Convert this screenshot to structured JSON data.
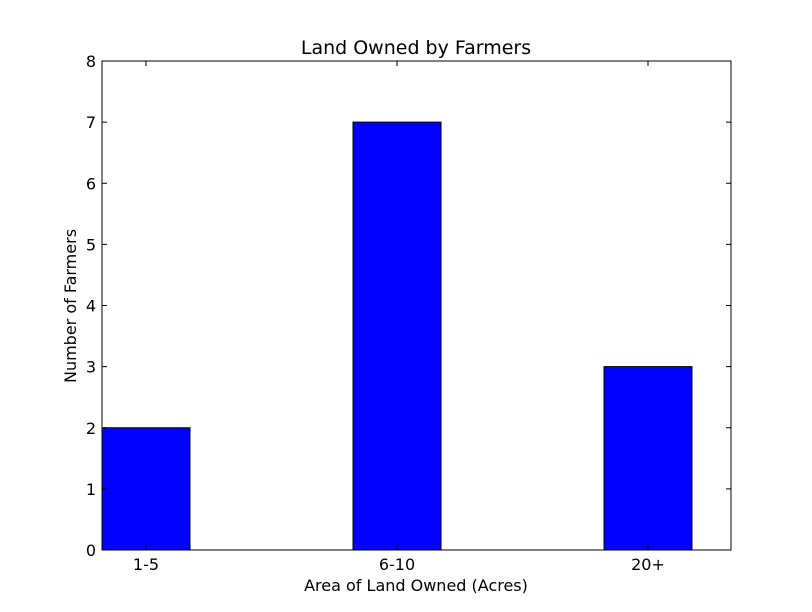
{
  "chart_data": {
    "type": "bar",
    "title": "Land Owned by Farmers",
    "xlabel": "Area of Land Owned (Acres)",
    "ylabel": "Number of Farmers",
    "categories": [
      "1-5",
      "6-10",
      "20+"
    ],
    "values": [
      2,
      7,
      3
    ],
    "ylim": [
      0,
      8
    ],
    "yticks": [
      "0",
      "1",
      "2",
      "3",
      "4",
      "5",
      "6",
      "7",
      "8"
    ],
    "grid": false,
    "legend": "none",
    "bar_color": "#0000ff",
    "edge_color": "#000000"
  }
}
